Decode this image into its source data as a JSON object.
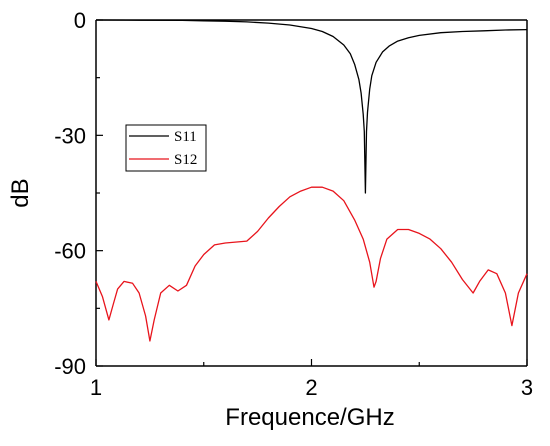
{
  "chart_data": {
    "type": "line",
    "title": "",
    "xlabel": "Frequence/GHz",
    "ylabel": "dB",
    "xlim": [
      1,
      3
    ],
    "ylim": [
      -90,
      0
    ],
    "x_ticks": [
      1,
      2,
      3
    ],
    "x_tick_labels": [
      "1",
      "2",
      "3"
    ],
    "y_ticks": [
      0,
      -30,
      -60,
      -90
    ],
    "y_tick_labels": [
      "0",
      "-30",
      "-60",
      "-90"
    ],
    "grid": false,
    "legend_position": "left-center",
    "colors": {
      "S11": "#000000",
      "S12": "#e8141c"
    },
    "series": [
      {
        "name": "S11",
        "x": [
          1.0,
          1.2,
          1.4,
          1.5,
          1.6,
          1.7,
          1.8,
          1.9,
          2.0,
          2.05,
          2.1,
          2.15,
          2.18,
          2.2,
          2.22,
          2.23,
          2.24,
          2.245,
          2.25,
          2.255,
          2.26,
          2.27,
          2.28,
          2.3,
          2.33,
          2.36,
          2.4,
          2.45,
          2.5,
          2.6,
          2.7,
          2.8,
          2.9,
          3.0
        ],
        "values": [
          0.0,
          -0.05,
          -0.1,
          -0.2,
          -0.3,
          -0.5,
          -0.8,
          -1.3,
          -2.2,
          -3.0,
          -4.3,
          -6.5,
          -8.8,
          -11.5,
          -15.5,
          -19.0,
          -24.5,
          -29.0,
          -45.0,
          -29.0,
          -24.0,
          -18.0,
          -14.5,
          -11.0,
          -8.3,
          -6.8,
          -5.5,
          -4.6,
          -4.0,
          -3.3,
          -3.0,
          -2.8,
          -2.6,
          -2.5
        ]
      },
      {
        "name": "S12",
        "x": [
          1.0,
          1.03,
          1.06,
          1.08,
          1.1,
          1.13,
          1.17,
          1.2,
          1.23,
          1.25,
          1.27,
          1.3,
          1.34,
          1.38,
          1.42,
          1.46,
          1.5,
          1.55,
          1.6,
          1.7,
          1.75,
          1.8,
          1.85,
          1.9,
          1.95,
          2.0,
          2.05,
          2.1,
          2.15,
          2.2,
          2.24,
          2.27,
          2.29,
          2.3,
          2.32,
          2.35,
          2.4,
          2.45,
          2.5,
          2.55,
          2.6,
          2.65,
          2.7,
          2.75,
          2.78,
          2.82,
          2.86,
          2.9,
          2.93,
          2.96,
          3.0
        ],
        "values": [
          -68.0,
          -72.0,
          -78.0,
          -74.0,
          -70.0,
          -68.0,
          -68.5,
          -71.0,
          -77.0,
          -83.5,
          -78.0,
          -71.0,
          -69.0,
          -70.5,
          -69.0,
          -64.0,
          -61.0,
          -58.5,
          -58.0,
          -57.5,
          -55.0,
          -51.5,
          -48.5,
          -46.0,
          -44.5,
          -43.5,
          -43.5,
          -44.5,
          -47.0,
          -52.0,
          -57.0,
          -63.0,
          -69.5,
          -68.0,
          -62.0,
          -57.0,
          -54.5,
          -54.5,
          -55.5,
          -57.0,
          -59.5,
          -63.0,
          -67.5,
          -71.0,
          -68.0,
          -65.0,
          -66.0,
          -71.0,
          -79.5,
          -71.0,
          -66.0
        ]
      }
    ]
  }
}
